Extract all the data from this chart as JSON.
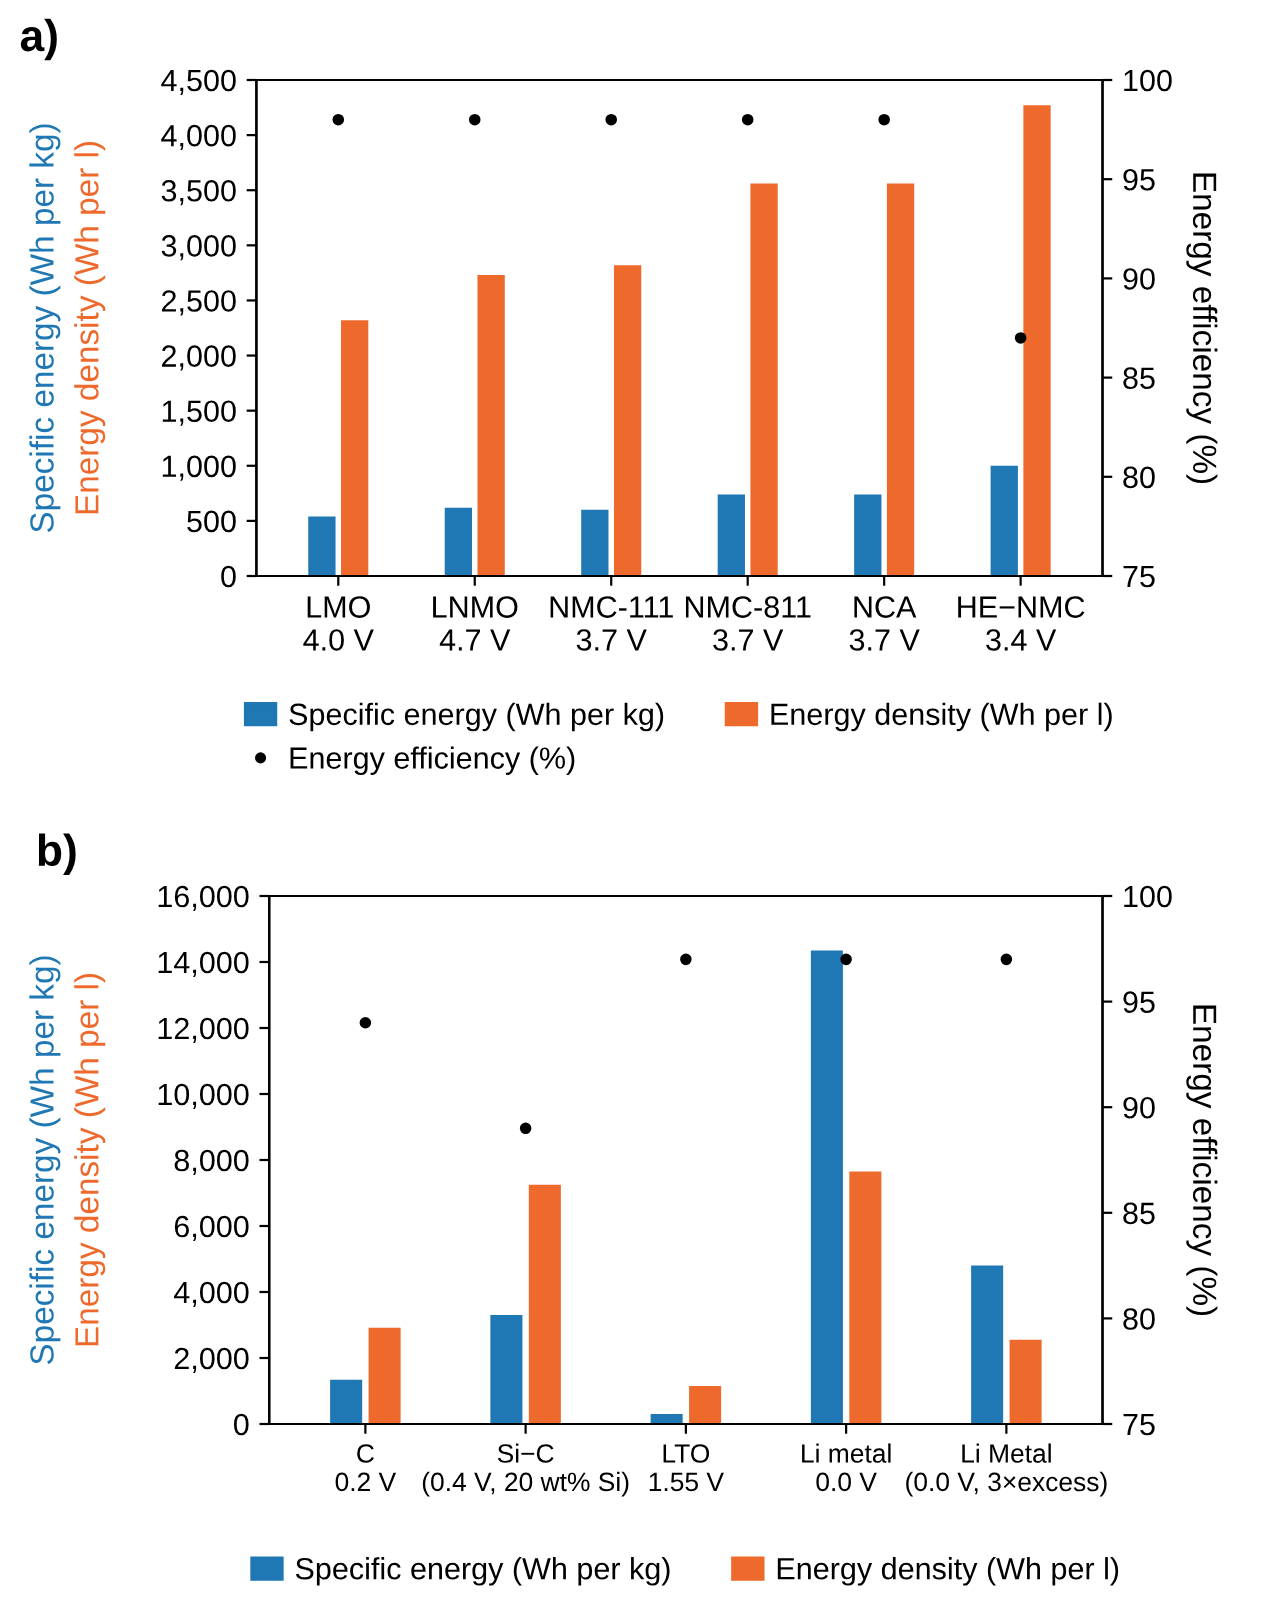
{
  "chart_data": [
    {
      "type": "bar",
      "title": "a)",
      "categories": [
        "LMO\n4.0 V",
        "LNMO\n4.7 V",
        "NMC-111\n3.7 V",
        "NMC-811\n3.7 V",
        "NCA\n3.7 V",
        "HE−NMC\n3.4 V"
      ],
      "series": [
        {
          "name": "Specific energy (Wh per kg)",
          "color": "#1f77b4",
          "values": [
            540,
            620,
            600,
            740,
            740,
            1000
          ]
        },
        {
          "name": "Energy density (Wh per l)",
          "color": "#ee6a2c",
          "values": [
            2320,
            2730,
            2820,
            3560,
            3560,
            4270
          ]
        },
        {
          "name": "Energy efficiency (%)",
          "type": "scatter",
          "axis": "y2",
          "color": "#000000",
          "values": [
            98,
            98,
            98,
            98,
            98,
            87
          ]
        }
      ],
      "ylabel": [
        "Specific energy (Wh per kg)",
        "Energy density (Wh per l)"
      ],
      "y2label": "Energy efficiency (%)",
      "ylim": [
        0,
        4500
      ],
      "yticks": [
        0,
        500,
        {
          "value": 1000,
          "label": "1,000"
        },
        {
          "value": 1500,
          "label": "1,500"
        },
        {
          "value": 2000,
          "label": "2,000"
        },
        {
          "value": 2500,
          "label": "2,500"
        },
        {
          "value": 3000,
          "label": "3,000"
        },
        {
          "value": 3500,
          "label": "3,500"
        },
        {
          "value": 4000,
          "label": "4,000"
        },
        {
          "value": 4500,
          "label": "4,500"
        }
      ],
      "y2lim": [
        75,
        100
      ],
      "y2ticks": [
        75,
        80,
        85,
        90,
        95,
        100
      ],
      "grid": false,
      "legend": "bottom",
      "marker": "circle"
    },
    {
      "type": "bar",
      "title": "b)",
      "categories": [
        "C\n0.2 V",
        "Si−C\n(0.4 V, 20 wt% Si)",
        "LTO\n1.55 V",
        "Li metal\n0.0 V",
        "Li Metal\n(0.0 V, 3×excess)"
      ],
      "series": [
        {
          "name": "Specific energy (Wh per kg)",
          "color": "#1f77b4",
          "values": [
            1340,
            3300,
            300,
            14350,
            4800
          ]
        },
        {
          "name": "Energy density (Wh per l)",
          "color": "#ee6a2c",
          "values": [
            2920,
            7250,
            1150,
            7650,
            2550
          ]
        },
        {
          "type": "scatter",
          "axis": "y2",
          "color": "#000000",
          "values": [
            94,
            89,
            97,
            97,
            97
          ]
        }
      ],
      "ylabel": [
        "Specific energy (Wh per kg)",
        "Energy density (Wh per l)"
      ],
      "y2label": "Energy efficiency (%)",
      "ylim": [
        0,
        16000
      ],
      "yticks": [
        0,
        {
          "value": 2000,
          "label": "2,000"
        },
        {
          "value": 4000,
          "label": "4,000"
        },
        {
          "value": 6000,
          "label": "6,000"
        },
        {
          "value": 8000,
          "label": "8,000"
        },
        {
          "value": 10000,
          "label": "10,000"
        },
        {
          "value": 12000,
          "label": "12,000"
        },
        {
          "value": 14000,
          "label": "14,000"
        },
        {
          "value": 16000,
          "label": "16,000"
        }
      ],
      "y2lim": [
        75,
        100
      ],
      "y2ticks": [
        75,
        80,
        85,
        90,
        95,
        100
      ],
      "grid": false,
      "legend": "bottom",
      "marker": "circle"
    }
  ]
}
